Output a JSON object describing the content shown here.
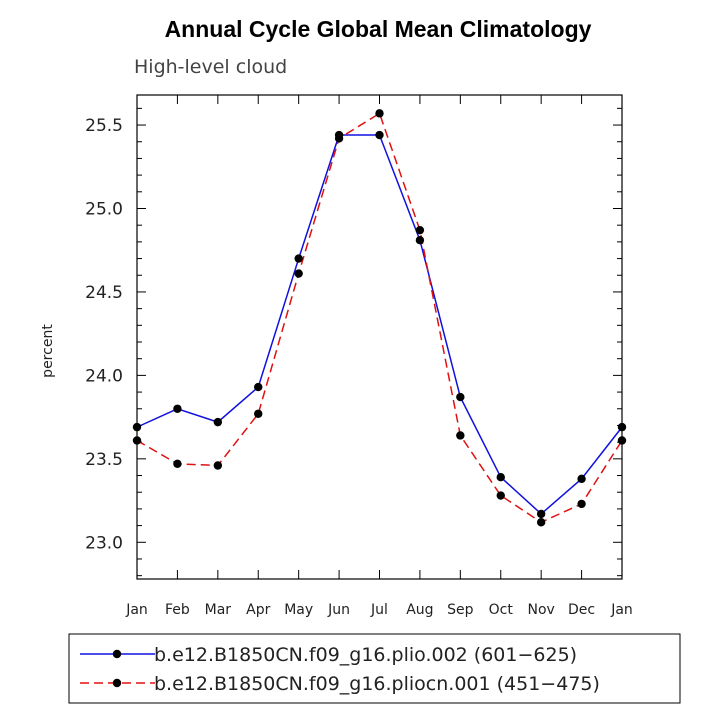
{
  "chart_data": {
    "type": "line",
    "title": "Annual Cycle Global Mean Climatology",
    "subtitle": "High-level cloud",
    "xlabel": "",
    "ylabel": "percent",
    "categories": [
      "Jan",
      "Feb",
      "Mar",
      "Apr",
      "May",
      "Jun",
      "Jul",
      "Aug",
      "Sep",
      "Oct",
      "Nov",
      "Dec",
      "Jan"
    ],
    "ylim": [
      22.78,
      25.68
    ],
    "yticks": [
      23.0,
      23.5,
      24.0,
      24.5,
      25.0,
      25.5
    ],
    "ytick_labels": [
      "23.0",
      "23.5",
      "24.0",
      "24.5",
      "25.0",
      "25.5"
    ],
    "series": [
      {
        "name": "b.e12.B1850CN.f09_g16.plio.002 (601−625)",
        "color": "#1010e0",
        "style": "solid",
        "values": [
          23.69,
          23.8,
          23.72,
          23.93,
          24.7,
          25.44,
          25.44,
          24.81,
          23.87,
          23.39,
          23.17,
          23.38,
          23.69
        ]
      },
      {
        "name": "b.e12.B1850CN.f09_g16.pliocn.001 (451−475)",
        "color": "#e01010",
        "style": "dashed",
        "values": [
          23.61,
          23.47,
          23.46,
          23.77,
          24.61,
          25.42,
          25.57,
          24.87,
          23.64,
          23.28,
          23.12,
          23.23,
          23.61
        ]
      }
    ],
    "legend_position": "bottom"
  }
}
